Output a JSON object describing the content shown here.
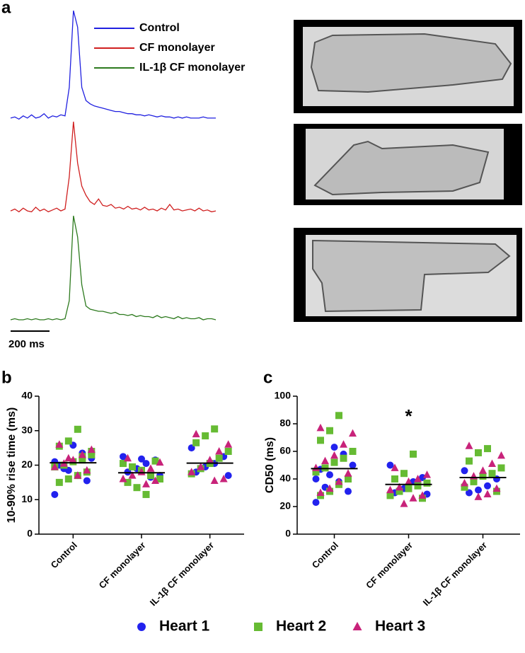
{
  "chart_data": [
    {
      "type": "line",
      "panel_label": "a",
      "ylim": [
        0,
        1
      ],
      "scale_bar": "200 ms",
      "series": [
        {
          "name": "Control",
          "color": "#2020e0",
          "values": [
            0.02,
            0.03,
            0.01,
            0.04,
            0.02,
            0.05,
            0.02,
            0.03,
            0.06,
            0.02,
            0.04,
            0.03,
            0.05,
            0.04,
            0.3,
            1.0,
            0.85,
            0.3,
            0.18,
            0.15,
            0.13,
            0.12,
            0.11,
            0.1,
            0.09,
            0.08,
            0.08,
            0.07,
            0.06,
            0.06,
            0.05,
            0.05,
            0.04,
            0.05,
            0.04,
            0.03,
            0.04,
            0.03,
            0.03,
            0.02,
            0.03,
            0.02,
            0.03,
            0.02,
            0.02,
            0.02,
            0.03,
            0.02,
            0.02,
            0.02
          ]
        },
        {
          "name": "CF monolayer",
          "color": "#d02020",
          "values": [
            0.03,
            0.05,
            0.02,
            0.06,
            0.03,
            0.02,
            0.07,
            0.03,
            0.05,
            0.02,
            0.04,
            0.06,
            0.03,
            0.05,
            0.4,
            1.0,
            0.55,
            0.3,
            0.2,
            0.13,
            0.1,
            0.16,
            0.09,
            0.08,
            0.1,
            0.06,
            0.07,
            0.05,
            0.08,
            0.05,
            0.06,
            0.04,
            0.07,
            0.04,
            0.05,
            0.03,
            0.06,
            0.04,
            0.1,
            0.04,
            0.05,
            0.03,
            0.04,
            0.05,
            0.03,
            0.06,
            0.03,
            0.04,
            0.02,
            0.03
          ]
        },
        {
          "name": "IL-1β CF monolayer",
          "color": "#2d7a1e",
          "values": [
            0.02,
            0.03,
            0.02,
            0.02,
            0.03,
            0.02,
            0.03,
            0.02,
            0.02,
            0.03,
            0.02,
            0.03,
            0.02,
            0.03,
            0.2,
            1.0,
            0.8,
            0.35,
            0.15,
            0.12,
            0.11,
            0.1,
            0.1,
            0.09,
            0.08,
            0.09,
            0.07,
            0.07,
            0.06,
            0.07,
            0.05,
            0.06,
            0.05,
            0.05,
            0.04,
            0.06,
            0.04,
            0.05,
            0.04,
            0.03,
            0.05,
            0.03,
            0.04,
            0.03,
            0.03,
            0.04,
            0.02,
            0.03,
            0.03,
            0.02
          ]
        }
      ]
    },
    {
      "type": "dotplot",
      "panel_label": "b",
      "ylabel": "10-90% rise time (ms)",
      "categories": [
        "Control",
        "CF monolayer",
        "IL-1β CF monolayer"
      ],
      "ylim": [
        0,
        40
      ],
      "yticks": [
        0,
        10,
        20,
        30,
        40
      ],
      "means": [
        20.7,
        17.8,
        20.6
      ],
      "series": [
        {
          "name": "Heart 1",
          "color": "#2222ee",
          "marker": "circle",
          "values": [
            [
              11.5,
              15.5,
              17,
              18.5,
              20,
              22,
              23.5,
              25.8,
              19,
              21
            ],
            [
              22.5,
              21.5,
              20.5,
              19,
              18,
              17,
              16.5,
              21.8
            ],
            [
              25,
              22.5,
              20.5,
              19.5,
              18,
              17
            ]
          ]
        },
        {
          "name": "Heart 2",
          "color": "#66bb33",
          "marker": "square",
          "values": [
            [
              30.4,
              27,
              25.5,
              24,
              22.5,
              21,
              20,
              19.5,
              18,
              17,
              16,
              15,
              23,
              21.5
            ],
            [
              11.5,
              13.5,
              15,
              16,
              17,
              18.5,
              19.5,
              20.5,
              21.2
            ],
            [
              30.5,
              28.5,
              26.5,
              24,
              22,
              20.5,
              19,
              17.5
            ]
          ]
        },
        {
          "name": "Heart 3",
          "color": "#c8237a",
          "marker": "triangle",
          "values": [
            [
              26,
              24.5,
              23,
              21.5,
              20.5,
              19.5,
              18.5,
              17,
              22
            ],
            [
              22,
              20.8,
              19,
              18,
              17,
              16,
              15.5,
              14.5
            ],
            [
              29,
              26,
              24,
              21.5,
              19.5,
              18,
              16,
              15.5
            ]
          ]
        }
      ]
    },
    {
      "type": "dotplot",
      "panel_label": "c",
      "ylabel": "CD50 (ms)",
      "categories": [
        "Control",
        "CF monolayer",
        "IL-1β CF monolayer"
      ],
      "ylim": [
        0,
        100
      ],
      "yticks": [
        0,
        20,
        40,
        60,
        80,
        100
      ],
      "means": [
        47.5,
        36,
        41
      ],
      "annotation": {
        "text": "*",
        "category": 1
      },
      "series": [
        {
          "color": "#2222ee",
          "marker": "circle",
          "values": [
            [
              23,
              31,
              38,
              43,
              47,
              50,
              58,
              63,
              34,
              40
            ],
            [
              50,
              41,
              38,
              33,
              30,
              29,
              36
            ],
            [
              46,
              40,
              35,
              32,
              30
            ]
          ]
        },
        {
          "color": "#66bb33",
          "marker": "square",
          "values": [
            [
              86,
              75,
              68,
              60,
              55,
              52,
              48,
              45,
              40,
              36,
              31,
              28
            ],
            [
              58,
              44,
              40,
              37,
              35,
              33,
              31,
              28,
              26
            ],
            [
              62,
              59,
              53,
              48,
              44,
              42,
              38,
              34,
              31
            ]
          ]
        },
        {
          "color": "#c8237a",
          "marker": "triangle",
          "values": [
            [
              77,
              73,
              65,
              57,
              53,
              48,
              44,
              38,
              33,
              30
            ],
            [
              48,
              43,
              40,
              38,
              34,
              32,
              28,
              26,
              22
            ],
            [
              64,
              57,
              51,
              46,
              42,
              37,
              33,
              29,
              27
            ]
          ]
        }
      ]
    }
  ]
}
